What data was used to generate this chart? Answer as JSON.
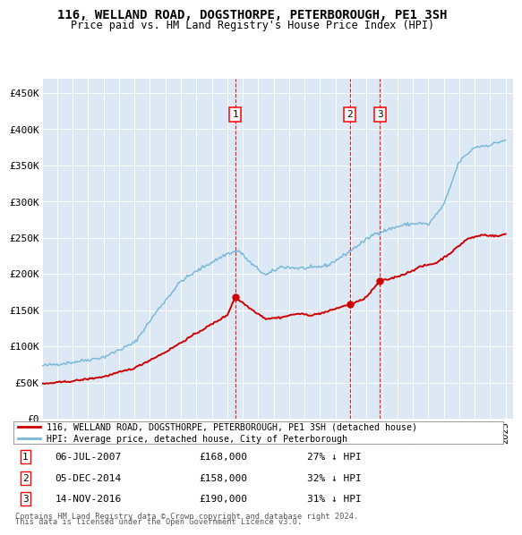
{
  "title": "116, WELLAND ROAD, DOGSTHORPE, PETERBOROUGH, PE1 3SH",
  "subtitle": "Price paid vs. HM Land Registry's House Price Index (HPI)",
  "legend_label_red": "116, WELLAND ROAD, DOGSTHORPE, PETERBOROUGH, PE1 3SH (detached house)",
  "legend_label_blue": "HPI: Average price, detached house, City of Peterborough",
  "transactions": [
    {
      "num": 1,
      "date": "06-JUL-2007",
      "date_val": 2007.51,
      "price": 168000,
      "pct": "27% ↓ HPI"
    },
    {
      "num": 2,
      "date": "05-DEC-2014",
      "date_val": 2014.92,
      "price": 158000,
      "pct": "32% ↓ HPI"
    },
    {
      "num": 3,
      "date": "14-NOV-2016",
      "date_val": 2016.87,
      "price": 190000,
      "pct": "31% ↓ HPI"
    }
  ],
  "footnote1": "Contains HM Land Registry data © Crown copyright and database right 2024.",
  "footnote2": "This data is licensed under the Open Government Licence v3.0.",
  "ylim": [
    0,
    470000
  ],
  "xlim_start": 1995.0,
  "xlim_end": 2025.5,
  "background_color": "#dce9f5",
  "hpi_anchors": [
    [
      1995.0,
      73000
    ],
    [
      1997.0,
      78000
    ],
    [
      1999.0,
      85000
    ],
    [
      2001.0,
      105000
    ],
    [
      2002.5,
      150000
    ],
    [
      2004.0,
      190000
    ],
    [
      2005.5,
      210000
    ],
    [
      2007.0,
      228000
    ],
    [
      2007.75,
      232000
    ],
    [
      2008.5,
      215000
    ],
    [
      2009.5,
      198000
    ],
    [
      2010.5,
      210000
    ],
    [
      2011.5,
      208000
    ],
    [
      2012.5,
      208000
    ],
    [
      2013.5,
      212000
    ],
    [
      2014.5,
      225000
    ],
    [
      2015.5,
      240000
    ],
    [
      2016.5,
      255000
    ],
    [
      2017.5,
      262000
    ],
    [
      2018.5,
      268000
    ],
    [
      2019.5,
      270000
    ],
    [
      2020.0,
      268000
    ],
    [
      2021.0,
      295000
    ],
    [
      2022.0,
      355000
    ],
    [
      2023.0,
      375000
    ],
    [
      2024.0,
      378000
    ],
    [
      2025.0,
      385000
    ]
  ],
  "pp_anchors": [
    [
      1995.0,
      48000
    ],
    [
      1997.0,
      52000
    ],
    [
      1999.0,
      58000
    ],
    [
      2001.0,
      70000
    ],
    [
      2003.0,
      92000
    ],
    [
      2005.0,
      118000
    ],
    [
      2007.0,
      143000
    ],
    [
      2007.51,
      168000
    ],
    [
      2008.5,
      152000
    ],
    [
      2009.5,
      138000
    ],
    [
      2010.5,
      140000
    ],
    [
      2011.5,
      145000
    ],
    [
      2012.5,
      143000
    ],
    [
      2013.5,
      148000
    ],
    [
      2014.0,
      152000
    ],
    [
      2014.92,
      158000
    ],
    [
      2015.5,
      162000
    ],
    [
      2016.0,
      168000
    ],
    [
      2016.87,
      190000
    ],
    [
      2017.5,
      193000
    ],
    [
      2018.5,
      200000
    ],
    [
      2019.5,
      210000
    ],
    [
      2020.5,
      215000
    ],
    [
      2021.5,
      230000
    ],
    [
      2022.5,
      248000
    ],
    [
      2023.5,
      254000
    ],
    [
      2024.5,
      252000
    ],
    [
      2025.0,
      255000
    ]
  ]
}
